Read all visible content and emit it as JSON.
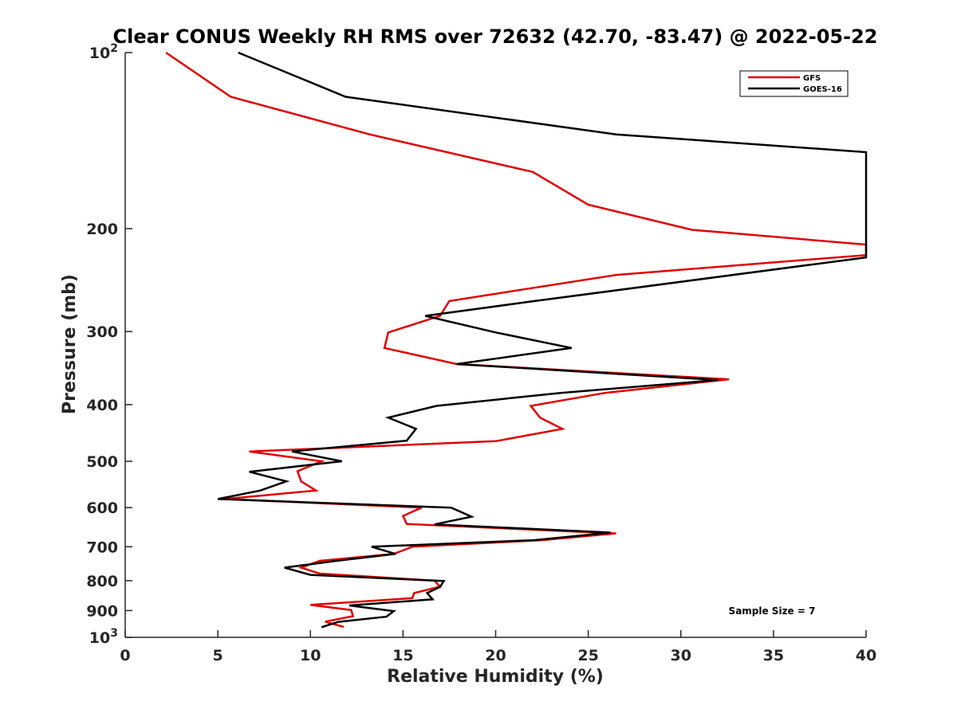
{
  "chart_data": {
    "type": "line",
    "title": "Clear CONUS Weekly RH RMS over 72632 (42.70, -83.47) @ 2022-05-22",
    "xlabel": "Relative Humidity (%)",
    "ylabel": "Pressure (mb)",
    "xlim": [
      0,
      40
    ],
    "ylim": [
      100,
      1000
    ],
    "yscale": "log",
    "y_reversed": true,
    "grid": false,
    "legend_position": "top-right",
    "x_ticks": [
      "0",
      "5",
      "10",
      "15",
      "20",
      "25",
      "30",
      "35",
      "40"
    ],
    "y_ticks": [
      {
        "value": 100,
        "base": "10",
        "exp": "2"
      },
      {
        "value": 200,
        "label": "200"
      },
      {
        "value": 300,
        "label": "300"
      },
      {
        "value": 400,
        "label": "400"
      },
      {
        "value": 500,
        "label": "500"
      },
      {
        "value": 600,
        "label": "600"
      },
      {
        "value": 700,
        "label": "700"
      },
      {
        "value": 800,
        "label": "800"
      },
      {
        "value": 900,
        "label": "900"
      },
      {
        "value": 1000,
        "base": "10",
        "exp": "3"
      }
    ],
    "annotation": "Sample Size = 7",
    "series": [
      {
        "name": "GFS",
        "color": "#e00000",
        "points": [
          [
            2.2,
            100
          ],
          [
            5.7,
            119
          ],
          [
            13.2,
            138
          ],
          [
            22,
            160
          ],
          [
            25,
            182
          ],
          [
            30.6,
            201
          ],
          [
            40,
            213
          ],
          [
            40,
            222
          ],
          [
            26.5,
            240
          ],
          [
            17.5,
            266
          ],
          [
            17,
            282
          ],
          [
            14.2,
            301
          ],
          [
            14,
            320
          ],
          [
            17.9,
            341
          ],
          [
            32.6,
            362
          ],
          [
            25.9,
            382
          ],
          [
            21.9,
            402
          ],
          [
            22.4,
            421
          ],
          [
            23.6,
            440
          ],
          [
            20,
            462
          ],
          [
            6.7,
            481
          ],
          [
            10.6,
            500
          ],
          [
            9.3,
            520
          ],
          [
            9.5,
            541
          ],
          [
            10.3,
            561
          ],
          [
            5.4,
            580
          ],
          [
            16,
            600
          ],
          [
            15,
            620
          ],
          [
            15.2,
            640
          ],
          [
            26.5,
            664
          ],
          [
            22.5,
            682
          ],
          [
            15.5,
            700
          ],
          [
            14.5,
            720
          ],
          [
            10.5,
            740
          ],
          [
            9.5,
            760
          ],
          [
            10.5,
            778
          ],
          [
            16.7,
            800
          ],
          [
            17,
            819
          ],
          [
            15.6,
            840
          ],
          [
            15.5,
            857
          ],
          [
            10,
            880
          ],
          [
            12.2,
            898
          ],
          [
            12.3,
            920
          ],
          [
            10.8,
            940
          ],
          [
            11.8,
            960
          ]
        ]
      },
      {
        "name": "GOES-16",
        "color": "#000000",
        "points": [
          [
            6.1,
            100
          ],
          [
            11.9,
            119
          ],
          [
            26.5,
            138
          ],
          [
            40,
            148
          ],
          [
            40,
            224
          ],
          [
            22.1,
            266
          ],
          [
            16.2,
            282
          ],
          [
            20,
            301
          ],
          [
            24.1,
            320
          ],
          [
            17.9,
            341
          ],
          [
            32,
            363
          ],
          [
            23.5,
            382
          ],
          [
            16.8,
            402
          ],
          [
            14.2,
            421
          ],
          [
            15.7,
            440
          ],
          [
            15.2,
            461
          ],
          [
            9,
            481
          ],
          [
            11.7,
            500
          ],
          [
            6.7,
            521
          ],
          [
            8.7,
            541
          ],
          [
            7.3,
            561
          ],
          [
            5,
            580
          ],
          [
            17.6,
            600
          ],
          [
            18.7,
            622
          ],
          [
            16.7,
            641
          ],
          [
            26.2,
            662
          ],
          [
            22.1,
            682
          ],
          [
            13.3,
            700
          ],
          [
            14.6,
            720
          ],
          [
            11.4,
            740
          ],
          [
            8.6,
            760
          ],
          [
            10,
            782
          ],
          [
            17.2,
            801
          ],
          [
            17,
            820
          ],
          [
            16.3,
            840
          ],
          [
            16.6,
            861
          ],
          [
            12.1,
            882
          ],
          [
            14.5,
            902
          ],
          [
            14.1,
            922
          ],
          [
            11.5,
            941
          ],
          [
            10.6,
            961
          ]
        ]
      }
    ]
  }
}
